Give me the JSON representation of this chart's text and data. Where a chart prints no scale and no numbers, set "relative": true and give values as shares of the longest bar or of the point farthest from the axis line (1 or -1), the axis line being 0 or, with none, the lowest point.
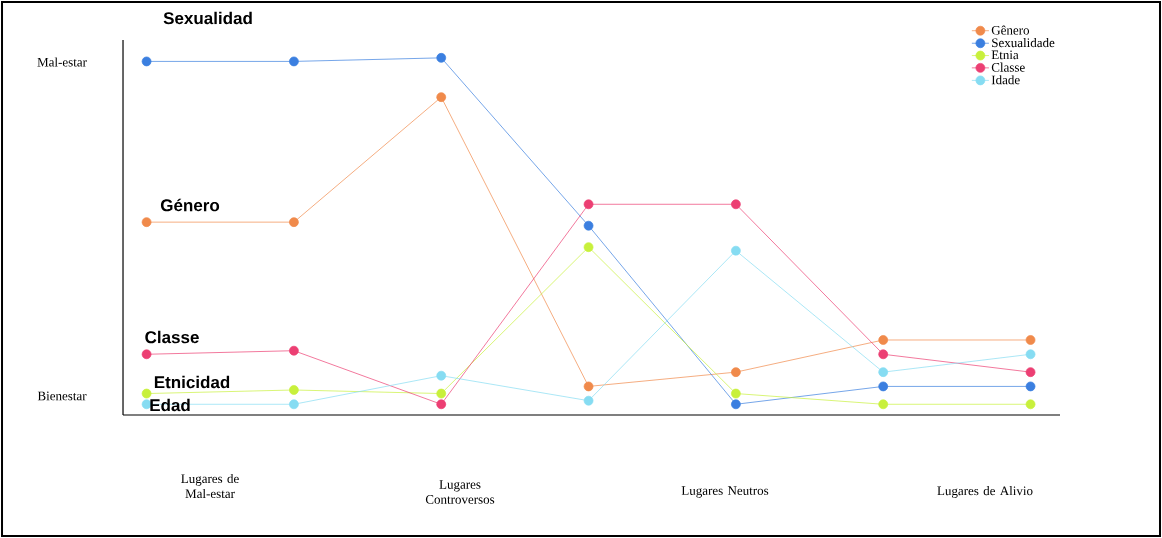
{
  "chart_data": {
    "type": "line",
    "relative": true,
    "categories": [
      null,
      null,
      null,
      null,
      null,
      null,
      null
    ],
    "series": [
      {
        "name": "Gênero",
        "color": "#f08a4b",
        "values": [
          0.54,
          0.54,
          0.89,
          0.08,
          0.12,
          0.21,
          0.21
        ]
      },
      {
        "name": "Sexualidade",
        "color": "#3b7fe0",
        "values": [
          0.99,
          0.99,
          1.0,
          0.53,
          0.03,
          0.08,
          0.08
        ]
      },
      {
        "name": "Etnia",
        "color": "#c8f03c",
        "values": [
          0.06,
          0.07,
          0.06,
          0.47,
          0.06,
          0.03,
          0.03
        ]
      },
      {
        "name": "Classe",
        "color": "#ec3f73",
        "values": [
          0.17,
          0.18,
          0.03,
          0.59,
          0.59,
          0.17,
          0.12
        ]
      },
      {
        "name": "Idade",
        "color": "#86dcf2",
        "values": [
          0.03,
          0.03,
          0.11,
          0.04,
          0.46,
          0.12,
          0.17
        ]
      }
    ],
    "annotations": [
      "Sexualidad",
      "Género",
      "Classe",
      "Etnicidad",
      "Edad",
      "Mal-estar",
      "Bienestar",
      "Lugares de Mal-estar",
      "Lugares Controversos",
      "Lugares Neutros",
      "Lugares de Alivio"
    ],
    "marker": "circle",
    "line_style": "solid",
    "legend": "top right",
    "grid": false
  }
}
